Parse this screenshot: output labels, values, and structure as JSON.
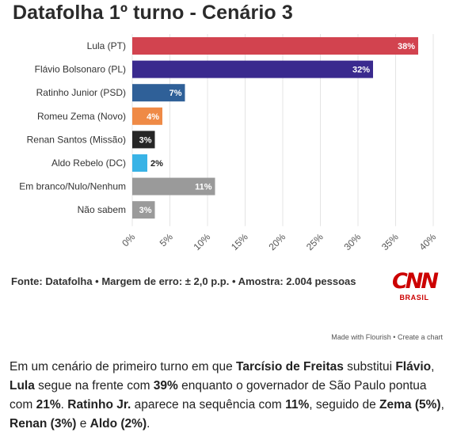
{
  "title": "Datafolha 1º turno - Cenário 3",
  "source_text": "Fonte: Datafolha • Margem de erro: ± 2,0 p.p. • Amostra: 2.004 pessoas",
  "logo": {
    "mark": "CNN",
    "sub": "BRASIL",
    "color": "#cc0000"
  },
  "flourish": {
    "made_with": "Made with Flourish",
    "separator": "•",
    "create": "Create a chart"
  },
  "caption": {
    "p1": "Em um cenário de primeiro turno em que ",
    "b1": "Tarcísio de Freitas",
    "p2": " substitui ",
    "b2": "Flávio",
    "p3": ", ",
    "b3": "Lula",
    "p4": " segue na frente com ",
    "b4": "39%",
    "p5": " enquanto o governador de São Paulo pontua com ",
    "b5": "21%",
    "p6": ". ",
    "b6": "Ratinho Jr.",
    "p7": " aparece na sequência com ",
    "b7": "11%",
    "p8": ", seguido de ",
    "b8": "Zema (5%)",
    "p9": ", ",
    "b9": "Renan (3%)",
    "p10": " e ",
    "b10": "Aldo (2%)",
    "p11": "."
  },
  "chart_data": {
    "type": "bar",
    "orientation": "horizontal",
    "title": "Datafolha 1º turno - Cenário 3",
    "categories": [
      "Lula (PT)",
      "Flávio Bolsonaro (PL)",
      "Ratinho Junior (PSD)",
      "Romeu Zema (Novo)",
      "Renan Santos (Missão)",
      "Aldo Rebelo (DC)",
      "Em branco/Nulo/Nenhum",
      "Não sabem"
    ],
    "values": [
      38,
      32,
      7,
      4,
      3,
      2,
      11,
      3
    ],
    "value_labels": [
      "38%",
      "32%",
      "7%",
      "4%",
      "3%",
      "2%",
      "11%",
      "3%"
    ],
    "colors": [
      "#d2434f",
      "#3a2a8e",
      "#2f6098",
      "#ef8a46",
      "#262626",
      "#39b3e6",
      "#9a9a9a",
      "#9a9a9a"
    ],
    "xlim": [
      0,
      40
    ],
    "x_ticks": [
      "0%",
      "5%",
      "10%",
      "15%",
      "20%",
      "25%",
      "30%",
      "35%",
      "40%"
    ],
    "grid": true,
    "xlabel": "",
    "ylabel": ""
  }
}
